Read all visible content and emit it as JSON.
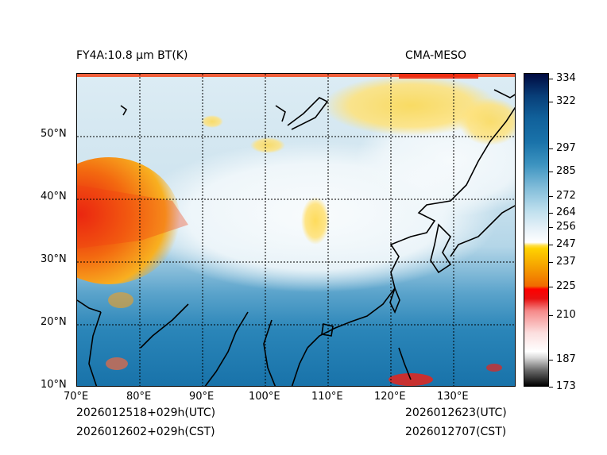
{
  "header": {
    "product": "FY4A:10.8 µm BT(K)",
    "source": "CMA-MESO"
  },
  "footer": {
    "init_utc": "2026012518+029h(UTC)",
    "init_cst": "2026012602+029h(CST)",
    "valid_utc": "2026012623(UTC)",
    "valid_cst": "2026012707(CST)"
  },
  "map": {
    "lon_labels": [
      "70°E",
      "80°E",
      "90°E",
      "100°E",
      "110°E",
      "120°E",
      "130°E"
    ],
    "lat_labels": [
      "10°N",
      "20°N",
      "30°N",
      "40°N",
      "50°N"
    ]
  },
  "colorbar": {
    "tick_labels": [
      "334",
      "322",
      "297",
      "285",
      "272",
      "264",
      "256",
      "247",
      "237",
      "225",
      "210",
      "187",
      "173"
    ]
  }
}
